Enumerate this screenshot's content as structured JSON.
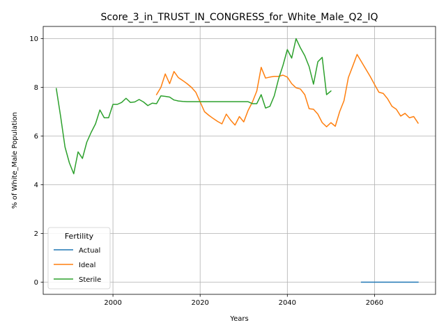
{
  "chart_data": {
    "type": "line",
    "title": "Score_3_in_TRUST_IN_CONGRESS_for_White_Male_Q2_IQ",
    "xlabel": "Years",
    "ylabel": "% of White_Male Population",
    "xlim": [
      1984,
      2074
    ],
    "ylim": [
      -0.5,
      10.5
    ],
    "xticks": [
      2000,
      2020,
      2040,
      2060
    ],
    "yticks": [
      0,
      2,
      4,
      6,
      8,
      10
    ],
    "grid": true,
    "legend": {
      "title": "Fertility",
      "placement": "lower-left"
    },
    "series": [
      {
        "name": "Actual",
        "color": "#1f77b4",
        "x": [
          2057,
          2060,
          2065,
          2070
        ],
        "y": [
          0,
          0,
          0,
          0
        ]
      },
      {
        "name": "Ideal",
        "color": "#ff7f0e",
        "x": [
          2010,
          2011,
          2012,
          2013,
          2014,
          2015,
          2016,
          2017,
          2018,
          2019,
          2020,
          2021,
          2022,
          2023,
          2024,
          2025,
          2026,
          2027,
          2028,
          2029,
          2030,
          2031,
          2032,
          2033,
          2034,
          2035,
          2036,
          2037,
          2038,
          2039,
          2040,
          2041,
          2042,
          2043,
          2044,
          2045,
          2046,
          2047,
          2048,
          2049,
          2050,
          2051,
          2052,
          2053,
          2054,
          2055,
          2056,
          2057,
          2058,
          2059,
          2060,
          2061,
          2062,
          2063,
          2064,
          2065,
          2066,
          2067,
          2068,
          2069,
          2070
        ],
        "y": [
          7.7,
          8.0,
          8.55,
          8.15,
          8.65,
          8.4,
          8.28,
          8.15,
          8.0,
          7.8,
          7.4,
          7.0,
          6.85,
          6.72,
          6.6,
          6.5,
          6.9,
          6.65,
          6.45,
          6.8,
          6.58,
          7.05,
          7.4,
          7.85,
          8.82,
          8.38,
          8.42,
          8.45,
          8.45,
          8.5,
          8.42,
          8.15,
          7.98,
          7.93,
          7.7,
          7.12,
          7.1,
          6.9,
          6.55,
          6.38,
          6.55,
          6.4,
          7.0,
          7.45,
          8.4,
          8.87,
          9.35,
          9.05,
          8.75,
          8.45,
          8.12,
          7.8,
          7.75,
          7.53,
          7.22,
          7.1,
          6.82,
          6.93,
          6.75,
          6.8,
          6.53
        ]
      },
      {
        "name": "Sterile",
        "color": "#2ca02c",
        "x": [
          1987,
          1988,
          1989,
          1990,
          1991,
          1992,
          1993,
          1994,
          1995,
          1996,
          1997,
          1998,
          1999,
          2000,
          2001,
          2002,
          2003,
          2004,
          2005,
          2006,
          2007,
          2008,
          2009,
          2010,
          2011,
          2012,
          2013,
          2014,
          2015,
          2016,
          2017,
          2018,
          2019,
          2020,
          2021,
          2022,
          2023,
          2024,
          2025,
          2026,
          2027,
          2028,
          2029,
          2030,
          2031,
          2032,
          2033,
          2034,
          2035,
          2036,
          2037,
          2038,
          2039,
          2040,
          2041,
          2042,
          2043,
          2044,
          2045,
          2046,
          2047,
          2048,
          2049,
          2050
        ],
        "y": [
          7.95,
          6.8,
          5.55,
          4.9,
          4.45,
          5.35,
          5.08,
          5.75,
          6.15,
          6.5,
          7.07,
          6.75,
          6.75,
          7.3,
          7.3,
          7.38,
          7.55,
          7.38,
          7.4,
          7.5,
          7.4,
          7.25,
          7.35,
          7.33,
          7.65,
          7.63,
          7.6,
          7.48,
          7.44,
          7.42,
          7.41,
          7.41,
          7.41,
          7.41,
          7.41,
          7.41,
          7.41,
          7.41,
          7.41,
          7.41,
          7.41,
          7.41,
          7.41,
          7.41,
          7.41,
          7.33,
          7.33,
          7.7,
          7.15,
          7.22,
          7.65,
          8.35,
          8.9,
          9.55,
          9.2,
          10.0,
          9.62,
          9.3,
          8.85,
          8.13,
          9.05,
          9.23,
          7.7,
          7.85
        ]
      }
    ]
  }
}
